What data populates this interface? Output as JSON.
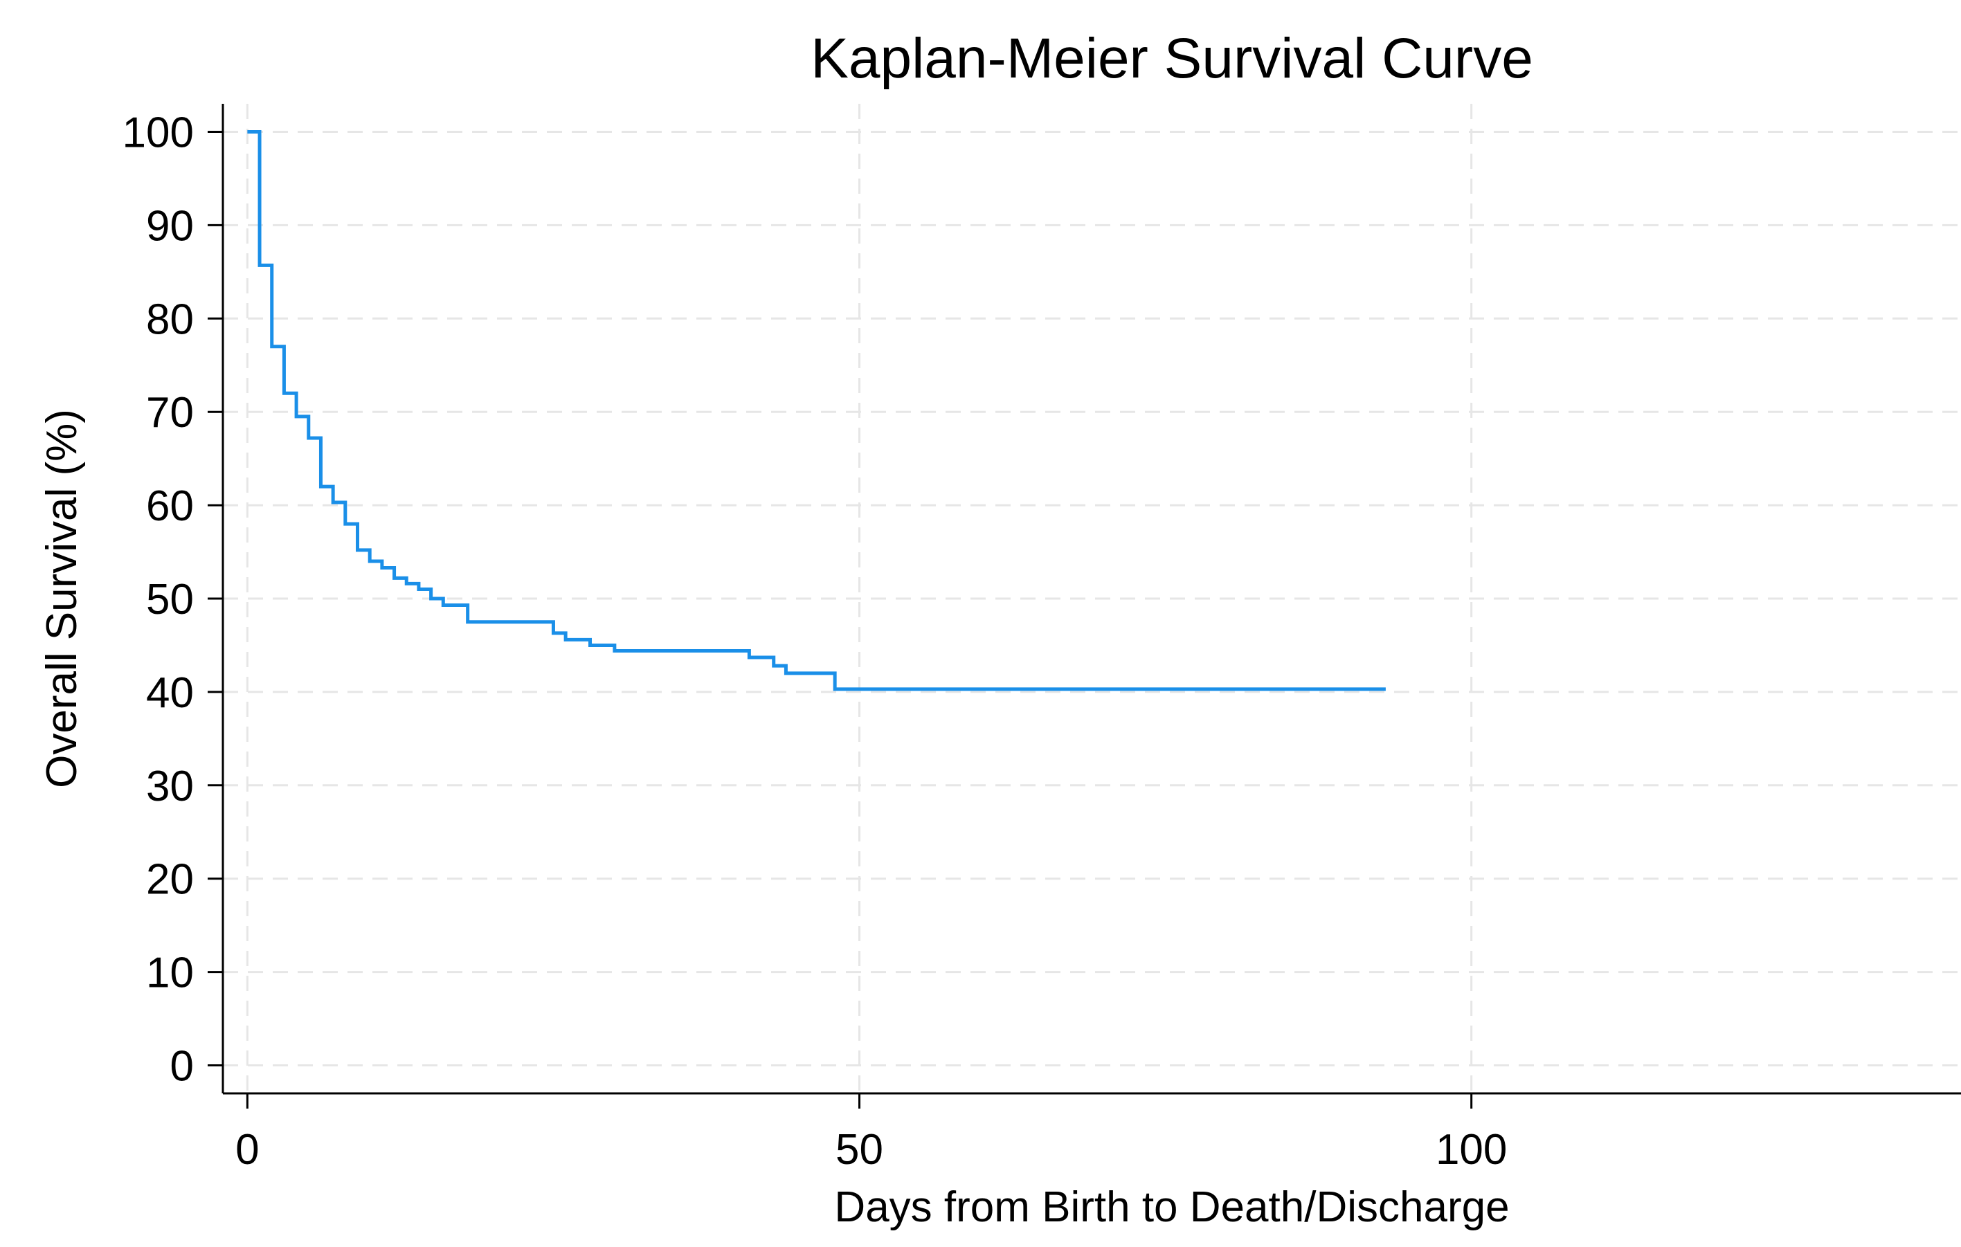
{
  "chart_data": {
    "type": "line",
    "step": true,
    "title": "Kaplan-Meier Survival Curve",
    "xlabel": "Days from Birth to Death/Discharge",
    "ylabel": "Overall Survival (%)",
    "xlim": [
      -2,
      140
    ],
    "ylim": [
      -3,
      103
    ],
    "xticks": [
      0,
      50,
      100
    ],
    "yticks": [
      0,
      10,
      20,
      30,
      40,
      50,
      60,
      70,
      80,
      90,
      100
    ],
    "xtick_labels": [
      "0",
      "50",
      "100"
    ],
    "ytick_labels": [
      "0",
      "10",
      "20",
      "30",
      "40",
      "50",
      "60",
      "70",
      "80",
      "90",
      "100"
    ],
    "grid": true,
    "legend": "none",
    "series": [
      {
        "name": "Overall survival",
        "color": "#1a8fe8",
        "points": [
          [
            0,
            100
          ],
          [
            1,
            85.7
          ],
          [
            2,
            77
          ],
          [
            3,
            72
          ],
          [
            4,
            69.5
          ],
          [
            5,
            67.2
          ],
          [
            6,
            62
          ],
          [
            7,
            60.3
          ],
          [
            8,
            58
          ],
          [
            9,
            55.2
          ],
          [
            10,
            54
          ],
          [
            11,
            53.3
          ],
          [
            12,
            52.2
          ],
          [
            13,
            51.6
          ],
          [
            14,
            51
          ],
          [
            15,
            50
          ],
          [
            16,
            49.3
          ],
          [
            18,
            47.5
          ],
          [
            25,
            46.3
          ],
          [
            26,
            45.6
          ],
          [
            28,
            45
          ],
          [
            30,
            44.4
          ],
          [
            41,
            43.7
          ],
          [
            43,
            42.8
          ],
          [
            44,
            42
          ],
          [
            48,
            40.3
          ],
          [
            93,
            40.3
          ]
        ]
      }
    ]
  }
}
